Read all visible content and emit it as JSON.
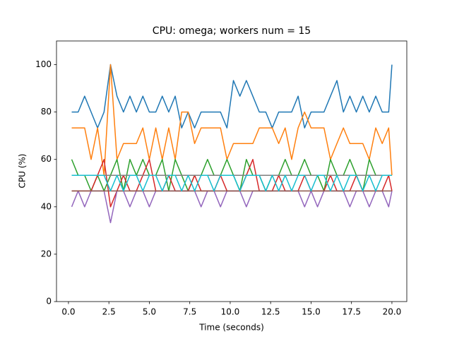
{
  "chart_data": {
    "type": "line",
    "title": "CPU: omega; workers num = 15",
    "xlabel": "Time (seconds)",
    "ylabel": "CPU (%)",
    "x": [
      0.2,
      0.6,
      1.0,
      1.4,
      1.8,
      2.2,
      2.6,
      3.0,
      3.4,
      3.8,
      4.2,
      4.6,
      5.0,
      5.4,
      5.8,
      6.2,
      6.6,
      7.0,
      7.4,
      7.8,
      8.2,
      8.6,
      9.0,
      9.4,
      9.8,
      10.2,
      10.6,
      11.0,
      11.4,
      11.8,
      12.2,
      12.6,
      13.0,
      13.4,
      13.8,
      14.2,
      14.6,
      15.0,
      15.4,
      15.8,
      16.2,
      16.6,
      17.0,
      17.4,
      17.8,
      18.2,
      18.6,
      19.0,
      19.4,
      19.8,
      20.0
    ],
    "series": [
      {
        "color": "#1f77b4",
        "values": [
          80,
          80,
          86.7,
          80,
          73.3,
          80,
          100,
          86.7,
          80,
          86.7,
          80,
          86.7,
          80,
          80,
          86.7,
          80,
          86.7,
          73.3,
          80,
          73.3,
          80,
          80,
          80,
          80,
          73.3,
          93.3,
          86.7,
          93.3,
          86.7,
          80,
          80,
          73.3,
          80,
          80,
          80,
          86.7,
          73.3,
          80,
          80,
          80,
          86.7,
          93.3,
          80,
          86.7,
          80,
          86.7,
          80,
          86.7,
          80,
          80,
          100
        ]
      },
      {
        "color": "#ff7f0e",
        "values": [
          73.3,
          73.3,
          73.3,
          60,
          73.3,
          53.3,
          100,
          60,
          66.7,
          66.7,
          66.7,
          73.3,
          60,
          73.3,
          60,
          73.3,
          60,
          80,
          80,
          66.7,
          73.3,
          73.3,
          73.3,
          73.3,
          60,
          66.7,
          66.7,
          66.7,
          66.7,
          73.3,
          73.3,
          73.3,
          66.7,
          73.3,
          60,
          73.3,
          80,
          73.3,
          73.3,
          73.3,
          60,
          66.7,
          73.3,
          66.7,
          66.7,
          66.7,
          60,
          73.3,
          66.7,
          73.3,
          53.3
        ]
      },
      {
        "color": "#2ca02c",
        "values": [
          60,
          53.3,
          53.3,
          46.7,
          53.3,
          46.7,
          53.3,
          60,
          46.7,
          60,
          53.3,
          60,
          53.3,
          53.3,
          60,
          46.7,
          60,
          53.3,
          46.7,
          53.3,
          53.3,
          60,
          53.3,
          53.3,
          60,
          53.3,
          46.7,
          60,
          53.3,
          53.3,
          46.7,
          53.3,
          53.3,
          60,
          53.3,
          53.3,
          60,
          53.3,
          53.3,
          46.7,
          60,
          53.3,
          53.3,
          60,
          53.3,
          46.7,
          60,
          53.3,
          53.3,
          53.3,
          53.3
        ]
      },
      {
        "color": "#d62728",
        "values": [
          46.7,
          46.7,
          46.7,
          46.7,
          53.3,
          60,
          40,
          46.7,
          53.3,
          46.7,
          46.7,
          53.3,
          60,
          46.7,
          46.7,
          53.3,
          46.7,
          46.7,
          46.7,
          53.3,
          46.7,
          46.7,
          46.7,
          53.3,
          46.7,
          46.7,
          46.7,
          53.3,
          60,
          46.7,
          46.7,
          46.7,
          53.3,
          46.7,
          46.7,
          46.7,
          53.3,
          46.7,
          46.7,
          46.7,
          53.3,
          46.7,
          46.7,
          46.7,
          53.3,
          46.7,
          46.7,
          46.7,
          46.7,
          53.3,
          46.7
        ]
      },
      {
        "color": "#9467bd",
        "values": [
          40,
          46.7,
          40,
          46.7,
          46.7,
          46.7,
          33.3,
          46.7,
          46.7,
          40,
          46.7,
          46.7,
          40,
          46.7,
          46.7,
          46.7,
          46.7,
          46.7,
          46.7,
          46.7,
          40,
          46.7,
          46.7,
          40,
          46.7,
          46.7,
          46.7,
          40,
          46.7,
          46.7,
          46.7,
          46.7,
          46.7,
          46.7,
          46.7,
          46.7,
          40,
          46.7,
          40,
          46.7,
          46.7,
          46.7,
          46.7,
          40,
          46.7,
          46.7,
          40,
          46.7,
          46.7,
          40,
          46.7
        ]
      },
      {
        "color": "#8c564b",
        "values": [
          46.7,
          46.7,
          46.7,
          46.7,
          46.7,
          46.7,
          46.7,
          46.7,
          46.7,
          46.7,
          46.7,
          46.7,
          46.7,
          46.7,
          46.7,
          46.7,
          46.7,
          46.7,
          46.7,
          46.7,
          46.7,
          46.7,
          46.7,
          46.7,
          46.7,
          46.7,
          46.7,
          46.7,
          46.7,
          46.7,
          46.7,
          46.7,
          46.7,
          46.7,
          46.7,
          46.7,
          46.7,
          46.7,
          46.7,
          46.7,
          46.7,
          46.7,
          46.7,
          46.7,
          46.7,
          46.7,
          46.7,
          46.7,
          46.7,
          46.7,
          46.7
        ]
      },
      {
        "color": "#7f7f7f",
        "values": [
          53.3,
          53.3,
          53.3,
          53.3,
          53.3,
          53.3,
          53.3,
          53.3,
          53.3,
          53.3,
          53.3,
          53.3,
          53.3,
          53.3,
          53.3,
          53.3,
          53.3,
          53.3,
          53.3,
          53.3,
          53.3,
          53.3,
          53.3,
          53.3,
          53.3,
          53.3,
          53.3,
          53.3,
          53.3,
          53.3,
          53.3,
          53.3,
          53.3,
          53.3,
          53.3,
          53.3,
          53.3,
          53.3,
          53.3,
          53.3,
          53.3,
          53.3,
          53.3,
          53.3,
          53.3,
          53.3,
          53.3,
          53.3,
          53.3,
          53.3,
          53.3
        ]
      },
      {
        "color": "#17becf",
        "values": [
          53.3,
          53.3,
          53.3,
          53.3,
          53.3,
          53.3,
          46.7,
          53.3,
          46.7,
          53.3,
          53.3,
          46.7,
          53.3,
          53.3,
          46.7,
          53.3,
          53.3,
          46.7,
          53.3,
          46.7,
          53.3,
          53.3,
          46.7,
          53.3,
          53.3,
          53.3,
          46.7,
          53.3,
          53.3,
          53.3,
          46.7,
          53.3,
          46.7,
          53.3,
          46.7,
          53.3,
          53.3,
          46.7,
          53.3,
          53.3,
          46.7,
          53.3,
          46.7,
          53.3,
          53.3,
          46.7,
          53.3,
          46.7,
          53.3,
          53.3,
          53.3
        ]
      }
    ],
    "xlim": [
      -0.74,
      20.92
    ],
    "ylim": [
      0,
      110
    ],
    "xticks": [
      {
        "value": 0,
        "label": "0.0"
      },
      {
        "value": 2.5,
        "label": "2.5"
      },
      {
        "value": 5,
        "label": "5.0"
      },
      {
        "value": 7.5,
        "label": "7.5"
      },
      {
        "value": 10,
        "label": "10.0"
      },
      {
        "value": 12.5,
        "label": "12.5"
      },
      {
        "value": 15,
        "label": "15.0"
      },
      {
        "value": 17.5,
        "label": "17.5"
      },
      {
        "value": 20,
        "label": "20.0"
      }
    ],
    "yticks": [
      0,
      20,
      40,
      60,
      80,
      100
    ]
  }
}
